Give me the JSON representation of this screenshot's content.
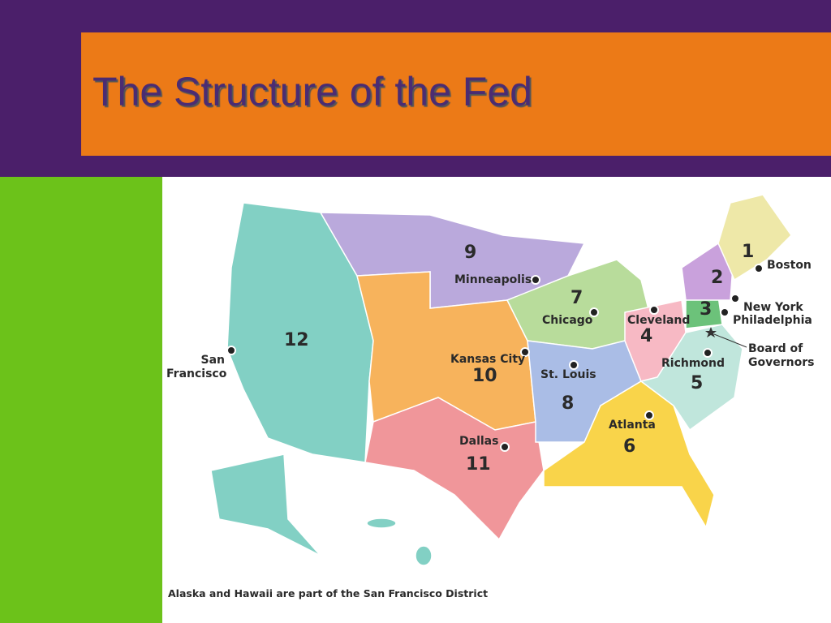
{
  "title": "The Structure of the Fed",
  "districts": [
    {
      "number": 1,
      "city": "Boston"
    },
    {
      "number": 2,
      "city": "New York"
    },
    {
      "number": 3,
      "city": "Philadelphia"
    },
    {
      "number": 4,
      "city": "Cleveland"
    },
    {
      "number": 5,
      "city": "Richmond"
    },
    {
      "number": 6,
      "city": "Atlanta"
    },
    {
      "number": 7,
      "city": "Chicago"
    },
    {
      "number": 8,
      "city": "St. Louis"
    },
    {
      "number": 9,
      "city": "Minneapolis"
    },
    {
      "number": 10,
      "city": "Kansas City"
    },
    {
      "number": 11,
      "city": "Dallas"
    },
    {
      "number": 12,
      "city": "San Francisco"
    }
  ],
  "board": "Board of Governors",
  "caption": "Alaska and Hawaii are part of the San Francisco District"
}
